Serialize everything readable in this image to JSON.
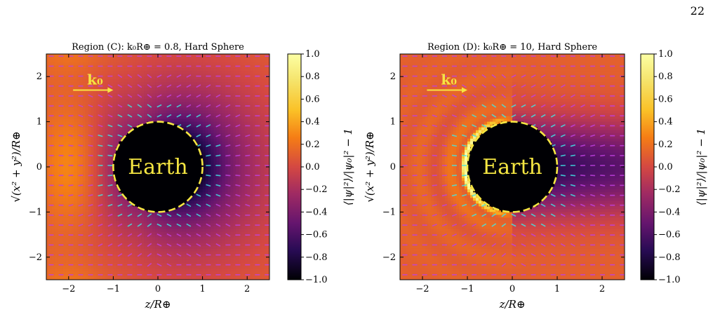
{
  "page_number": "22",
  "chart_data": [
    {
      "type": "heatmap",
      "title": "Region (C):  k₀R⊕ = 0.8, Hard Sphere",
      "k0R": 0.8,
      "xlabel": "z/R⊕",
      "ylabel": "√(x² + y²)/R⊕",
      "xlim": [
        -2.5,
        2.5
      ],
      "ylim": [
        -2.5,
        2.5
      ],
      "xticks": [
        -2,
        -1,
        0,
        1,
        2
      ],
      "yticks": [
        -2,
        -1,
        0,
        1,
        2
      ],
      "xtick_labels": [
        "−2",
        "−1",
        "0",
        "1",
        "2"
      ],
      "ytick_labels": [
        "−2",
        "−1",
        "0",
        "1",
        "2"
      ],
      "earth_label": "Earth",
      "earth_radius": 1,
      "arrow_label": "k₀",
      "arrow_from": [
        -1.9,
        1.7
      ],
      "arrow_to": [
        -1.0,
        1.7
      ],
      "colorbar": {
        "label": "⟨|ψ|²⟩/|ψ₀|² − 1",
        "range": [
          -1.0,
          1.0
        ],
        "ticks": [
          1.0,
          0.8,
          0.6,
          0.4,
          0.2,
          0.0,
          -0.2,
          -0.4,
          -0.6,
          -0.8,
          -1.0
        ],
        "tick_labels": [
          "1.0",
          "0.8",
          "0.6",
          "0.4",
          "0.2",
          "0.0",
          "−0.2",
          "−0.4",
          "−0.6",
          "−0.8",
          "−1.0"
        ]
      }
    },
    {
      "type": "heatmap",
      "title": "Region (D):  k₀R⊕ = 10, Hard Sphere",
      "k0R": 10,
      "xlabel": "z/R⊕",
      "ylabel": "√(x² + y²)/R⊕",
      "xlim": [
        -2.5,
        2.5
      ],
      "ylim": [
        -2.5,
        2.5
      ],
      "xticks": [
        -2,
        -1,
        0,
        1,
        2
      ],
      "yticks": [
        -2,
        -1,
        0,
        1,
        2
      ],
      "xtick_labels": [
        "−2",
        "−1",
        "0",
        "1",
        "2"
      ],
      "ytick_labels": [
        "−2",
        "−1",
        "0",
        "1",
        "2"
      ],
      "earth_label": "Earth",
      "earth_radius": 1,
      "arrow_label": "k₀",
      "arrow_from": [
        -1.9,
        1.7
      ],
      "arrow_to": [
        -1.0,
        1.7
      ],
      "colorbar": {
        "label": "⟨|ψ|²⟩/|ψ₀|² − 1",
        "range": [
          -1.0,
          1.0
        ],
        "ticks": [
          1.0,
          0.8,
          0.6,
          0.4,
          0.2,
          0.0,
          -0.2,
          -0.4,
          -0.6,
          -0.8,
          -1.0
        ],
        "tick_labels": [
          "1.0",
          "0.8",
          "0.6",
          "0.4",
          "0.2",
          "0.0",
          "−0.2",
          "−0.4",
          "−0.6",
          "−0.8",
          "−1.0"
        ]
      }
    }
  ],
  "colors": {
    "earth_outline": "#f5e642",
    "arrow": "#f5e642",
    "quiver_cyan": "#3ee6e6",
    "quiver_magenta": "#c040e0"
  }
}
